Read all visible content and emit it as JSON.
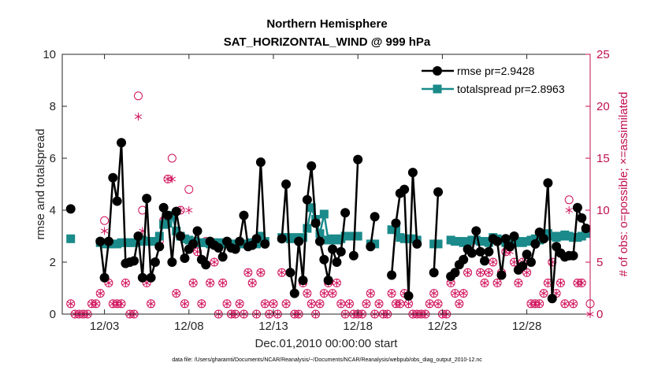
{
  "chart_data": {
    "type": "line",
    "title": "Northern Hemisphere",
    "subtitle": "SAT_HORIZONTAL_WIND @ 999 hPa",
    "xlabel": "Dec.01,2010 00:00:00 start",
    "ylabel": "rmse and totalspread",
    "ylabel_right": "# of obs: o=possible; ×=assimilated",
    "footnote": "data file: /Users/gharamti/Documents/NCAR/Reanalysis/~/Documents/NCAR/Reanalysis/webpub/obs_diag_output_2010-12.nc",
    "xlim": [
      0.5,
      31.75
    ],
    "ylim": [
      0,
      10
    ],
    "ylim_right": [
      0,
      25
    ],
    "x_ticks": [
      3,
      8,
      13,
      18,
      23,
      28
    ],
    "x_tick_labels": [
      "12/03",
      "12/08",
      "12/13",
      "12/18",
      "12/23",
      "12/28"
    ],
    "y_ticks": [
      0,
      2,
      4,
      6,
      8,
      10
    ],
    "y_tick_labels": [
      "0",
      "2",
      "4",
      "6",
      "8",
      "10"
    ],
    "y_right_ticks": [
      0,
      5,
      10,
      15,
      20,
      25
    ],
    "y_right_tick_labels": [
      "0",
      "5",
      "10",
      "15",
      "20",
      "25"
    ],
    "legend_position": "top-right",
    "grid": false,
    "colors": {
      "rmse": "#000000",
      "spread": "#1a8a8a",
      "obs": "#d0105a",
      "axis_right": "#c01050"
    },
    "series": [
      {
        "name": "rmse pr=2.9428",
        "marker": "circle",
        "segments": [
          {
            "x": [
              1.0
            ],
            "y": [
              4.05
            ]
          },
          {
            "x": [
              2.75,
              3.0,
              3.25,
              3.5,
              3.75,
              4.0,
              4.25,
              4.5,
              4.75,
              5.0,
              5.25,
              5.5,
              5.75,
              6.0,
              6.25,
              6.5,
              6.75,
              7.0,
              7.25,
              7.5,
              7.75,
              8.0,
              8.25,
              8.5,
              8.75,
              9.0,
              9.25,
              9.5,
              9.75,
              10.0,
              10.25,
              10.5,
              10.75,
              11.0,
              11.25,
              11.5,
              11.75,
              12.0,
              12.25,
              12.5
            ],
            "y": [
              2.8,
              1.4,
              2.8,
              5.25,
              4.35,
              6.6,
              1.95,
              2.0,
              2.05,
              3.0,
              1.4,
              4.45,
              1.4,
              2.0,
              2.6,
              4.1,
              3.8,
              2.0,
              3.95,
              3.0,
              2.15,
              2.5,
              2.7,
              3.2,
              2.1,
              1.9,
              2.8,
              2.65,
              2.55,
              2.2,
              2.8,
              2.55,
              2.5,
              2.8,
              3.8,
              2.6,
              2.65,
              2.9,
              5.85,
              2.7
            ]
          },
          {
            "x": [
              13.5,
              13.75,
              14.0,
              14.25,
              14.5,
              14.75,
              15.0,
              15.25,
              15.5,
              15.75,
              16.0,
              16.25,
              16.5,
              16.75,
              17.0,
              17.25
            ],
            "y": [
              2.9,
              5.0,
              1.6,
              0.8,
              2.8,
              1.3,
              4.4,
              5.7,
              3.5,
              2.8,
              2.1,
              1.3,
              2.5,
              2.0,
              2.4,
              3.9
            ]
          },
          {
            "x": [
              17.75,
              18.0
            ],
            "y": [
              2.25,
              5.95
            ]
          },
          {
            "x": [
              18.75,
              19.0
            ],
            "y": [
              2.6,
              3.75
            ]
          },
          {
            "x": [
              20.0,
              20.25,
              20.5,
              20.75,
              21.0,
              21.25,
              21.5
            ],
            "y": [
              1.5,
              3.5,
              4.65,
              4.8,
              0.7,
              5.45,
              2.7
            ]
          },
          {
            "x": [
              22.5,
              22.75
            ],
            "y": [
              1.6,
              4.7
            ]
          },
          {
            "x": [
              23.5,
              23.75,
              24.0,
              24.25,
              24.5,
              24.75,
              25.0,
              25.25,
              25.5,
              25.75,
              26.0,
              26.25,
              26.5,
              26.75,
              27.0,
              27.25,
              27.5,
              27.75,
              28.0,
              28.25,
              28.5,
              28.75,
              29.0,
              29.25,
              29.5,
              29.75,
              30.0,
              30.25,
              30.5,
              30.75,
              31.0,
              31.25,
              31.5
            ],
            "y": [
              1.45,
              1.6,
              1.9,
              2.1,
              2.5,
              2.35,
              3.2,
              2.4,
              2.05,
              2.4,
              2.9,
              2.8,
              1.5,
              2.9,
              2.6,
              3.0,
              1.7,
              1.85,
              2.3,
              2.0,
              2.7,
              3.15,
              2.9,
              5.05,
              0.6,
              2.6,
              2.35,
              2.2,
              2.25,
              2.25,
              4.1,
              3.7,
              3.3
            ]
          }
        ]
      },
      {
        "name": "totalspread pr=2.8963",
        "marker": "square",
        "segments": [
          {
            "x": [
              1.0
            ],
            "y": [
              2.9
            ]
          },
          {
            "x": [
              2.75,
              3.0,
              3.25,
              3.5,
              3.75,
              4.0,
              4.25,
              4.5,
              4.75,
              5.0,
              5.25,
              5.5,
              5.75,
              6.0,
              6.25,
              6.5,
              6.75,
              7.0,
              7.25,
              7.5,
              7.75,
              8.0,
              8.25,
              8.5,
              8.75,
              9.0,
              9.25,
              9.5,
              9.75,
              10.0,
              10.25,
              10.5,
              10.75,
              11.0,
              11.25,
              11.5,
              11.75,
              12.0,
              12.25,
              12.5
            ],
            "y": [
              2.75,
              2.7,
              2.7,
              2.7,
              2.7,
              2.75,
              2.75,
              2.75,
              2.75,
              2.8,
              2.85,
              2.8,
              2.8,
              2.8,
              3.0,
              3.45,
              3.5,
              3.8,
              3.2,
              3.0,
              2.9,
              2.85,
              2.8,
              2.75,
              2.75,
              2.75,
              2.7,
              2.75,
              2.75,
              2.7,
              2.75,
              2.7,
              2.7,
              2.7,
              2.7,
              2.7,
              2.75,
              2.7,
              3.0,
              2.8
            ]
          },
          {
            "x": [
              13.5,
              13.75,
              14.0,
              14.25,
              14.5,
              14.75,
              15.0,
              15.25,
              15.5,
              15.75,
              16.0,
              16.25,
              16.5,
              16.75,
              17.0,
              17.25
            ],
            "y": [
              2.95,
              2.95,
              2.9,
              2.95,
              2.9,
              2.95,
              3.3,
              4.1,
              3.65,
              3.1,
              3.85,
              2.85,
              2.9,
              2.85,
              2.9,
              3.0
            ]
          },
          {
            "x": [
              17.75,
              18.0
            ],
            "y": [
              3.0,
              3.0
            ]
          },
          {
            "x": [
              18.75,
              19.0
            ],
            "y": [
              2.7,
              2.7
            ]
          },
          {
            "x": [
              20.0,
              20.25,
              20.5,
              20.75,
              21.0,
              21.25,
              21.5
            ],
            "y": [
              3.25,
              3.25,
              2.95,
              2.9,
              2.9,
              2.9,
              2.85
            ]
          },
          {
            "x": [
              22.5,
              22.75
            ],
            "y": [
              2.7,
              2.7
            ]
          },
          {
            "x": [
              23.5,
              23.75,
              24.0,
              24.25,
              24.5,
              24.75,
              25.0,
              25.25,
              25.5,
              25.75,
              26.0,
              26.25,
              26.5,
              26.75,
              27.0,
              27.25,
              27.5,
              27.75,
              28.0,
              28.25,
              28.5,
              28.75,
              29.0,
              29.25,
              29.5,
              29.75,
              30.0,
              30.25,
              30.5,
              30.75,
              31.0,
              31.25,
              31.5
            ],
            "y": [
              2.85,
              2.8,
              2.8,
              2.75,
              2.8,
              2.85,
              2.85,
              2.8,
              2.8,
              2.75,
              2.95,
              2.9,
              2.85,
              2.75,
              2.75,
              2.75,
              2.8,
              2.75,
              2.8,
              2.85,
              2.9,
              2.85,
              3.0,
              3.1,
              3.0,
              2.95,
              3.0,
              3.05,
              3.0,
              2.95,
              2.95,
              3.0,
              3.1
            ]
          }
        ]
      },
      {
        "name": "# of obs possible",
        "marker": "open-circle",
        "axis": "right",
        "x": [
          1.0,
          1.25,
          1.5,
          1.75,
          2.0,
          2.25,
          2.5,
          2.75,
          3.0,
          3.25,
          3.5,
          3.75,
          4.0,
          4.25,
          4.5,
          4.75,
          5.0,
          5.25,
          5.5,
          5.75,
          6.0,
          6.25,
          6.5,
          6.75,
          7.0,
          7.25,
          7.5,
          7.75,
          8.0,
          8.25,
          8.5,
          8.75,
          9.0,
          9.25,
          9.5,
          9.75,
          10.0,
          10.25,
          10.5,
          10.75,
          11.0,
          11.25,
          11.5,
          11.75,
          12.0,
          12.25,
          12.5,
          12.75,
          13.0,
          13.25,
          13.5,
          13.75,
          14.0,
          14.25,
          14.5,
          14.75,
          15.0,
          15.25,
          15.5,
          15.75,
          16.0,
          16.25,
          16.5,
          16.75,
          17.0,
          17.25,
          17.5,
          17.75,
          18.0,
          18.25,
          18.5,
          18.75,
          19.0,
          19.25,
          19.5,
          19.75,
          20.0,
          20.25,
          20.5,
          20.75,
          21.0,
          21.25,
          21.5,
          21.75,
          22.0,
          22.25,
          22.5,
          22.75,
          23.0,
          23.25,
          23.5,
          23.75,
          24.0,
          24.25,
          24.5,
          24.75,
          25.0,
          25.25,
          25.5,
          25.75,
          26.0,
          26.25,
          26.5,
          26.75,
          27.0,
          27.25,
          27.5,
          27.75,
          28.0,
          28.25,
          28.5,
          28.75,
          29.0,
          29.25,
          29.5,
          29.75,
          30.0,
          30.25,
          30.5,
          30.75,
          31.0,
          31.25,
          31.5,
          31.75
        ],
        "y": [
          1,
          0,
          0,
          0,
          0,
          1,
          1,
          2,
          9,
          3,
          1,
          1,
          1,
          3,
          0,
          0,
          21,
          10,
          3,
          1,
          5,
          7,
          9,
          13,
          15,
          2,
          10,
          1,
          12,
          3,
          6,
          1,
          7,
          3,
          5,
          0,
          3,
          1,
          0,
          0,
          1,
          0,
          4,
          3,
          0,
          4,
          1,
          0,
          1,
          0,
          4,
          1,
          4,
          0,
          0,
          3,
          2,
          1,
          0,
          1,
          2,
          3,
          2,
          3,
          1,
          0,
          1,
          0,
          0,
          0,
          1,
          2,
          0,
          1,
          0,
          0,
          2,
          1,
          1,
          2,
          1,
          0,
          0,
          0,
          0,
          1,
          2,
          1,
          0,
          0,
          3,
          2,
          1,
          2,
          4,
          7,
          8,
          4,
          3,
          4,
          5,
          3,
          4,
          6,
          7,
          5,
          3,
          5,
          4,
          1,
          1,
          1,
          2,
          3,
          5,
          2,
          3,
          1,
          11,
          1,
          3,
          3,
          8,
          1
        ]
      },
      {
        "name": "# of obs assimilated",
        "marker": "asterisk",
        "axis": "right",
        "x": [
          1.0,
          1.25,
          1.5,
          1.75,
          2.0,
          2.25,
          2.5,
          2.75,
          3.0,
          3.25,
          3.5,
          3.75,
          4.0,
          4.25,
          4.5,
          4.75,
          5.0,
          5.25,
          5.5,
          5.75,
          6.0,
          6.25,
          6.5,
          6.75,
          7.0,
          7.25,
          7.5,
          7.75,
          8.0,
          8.25,
          8.5,
          8.75,
          9.0,
          9.25,
          9.5,
          9.75,
          10.0,
          10.25,
          10.5,
          10.75,
          11.0,
          11.25,
          11.5,
          11.75,
          12.0,
          12.25,
          12.5,
          12.75,
          13.0,
          13.25,
          13.5,
          13.75,
          14.0,
          14.25,
          14.5,
          14.75,
          15.0,
          15.25,
          15.5,
          15.75,
          16.0,
          16.25,
          16.5,
          16.75,
          17.0,
          17.25,
          17.5,
          17.75,
          18.0,
          18.25,
          18.5,
          18.75,
          19.0,
          19.25,
          19.5,
          19.75,
          20.0,
          20.25,
          20.5,
          20.75,
          21.0,
          21.25,
          21.5,
          21.75,
          22.0,
          22.25,
          22.5,
          22.75,
          23.0,
          23.25,
          23.5,
          23.75,
          24.0,
          24.25,
          24.5,
          24.75,
          25.0,
          25.25,
          25.5,
          25.75,
          26.0,
          26.25,
          26.5,
          26.75,
          27.0,
          27.25,
          27.5,
          27.75,
          28.0,
          28.25,
          28.5,
          28.75,
          29.0,
          29.25,
          29.5,
          29.75,
          30.0,
          30.25,
          30.5,
          30.75,
          31.0,
          31.25,
          31.5,
          31.75
        ],
        "y": [
          1,
          0,
          0,
          0,
          0,
          1,
          1,
          2,
          8,
          3,
          1,
          1,
          1,
          3,
          0,
          0,
          19,
          8,
          3,
          1,
          5,
          7,
          9,
          13,
          13,
          2,
          10,
          1,
          10,
          3,
          6,
          1,
          7,
          3,
          5,
          0,
          3,
          1,
          0,
          0,
          1,
          0,
          4,
          3,
          0,
          4,
          1,
          0,
          1,
          0,
          4,
          1,
          4,
          0,
          0,
          3,
          2,
          1,
          0,
          1,
          2,
          3,
          2,
          3,
          1,
          0,
          1,
          0,
          0,
          0,
          1,
          2,
          0,
          1,
          0,
          0,
          2,
          1,
          1,
          2,
          1,
          0,
          0,
          0,
          0,
          1,
          2,
          1,
          0,
          0,
          3,
          2,
          1,
          2,
          4,
          6,
          7,
          4,
          3,
          4,
          5,
          3,
          4,
          6,
          6,
          5,
          3,
          5,
          4,
          1,
          1,
          1,
          2,
          3,
          5,
          2,
          3,
          1,
          10,
          1,
          3,
          3,
          8,
          0
        ]
      }
    ]
  }
}
